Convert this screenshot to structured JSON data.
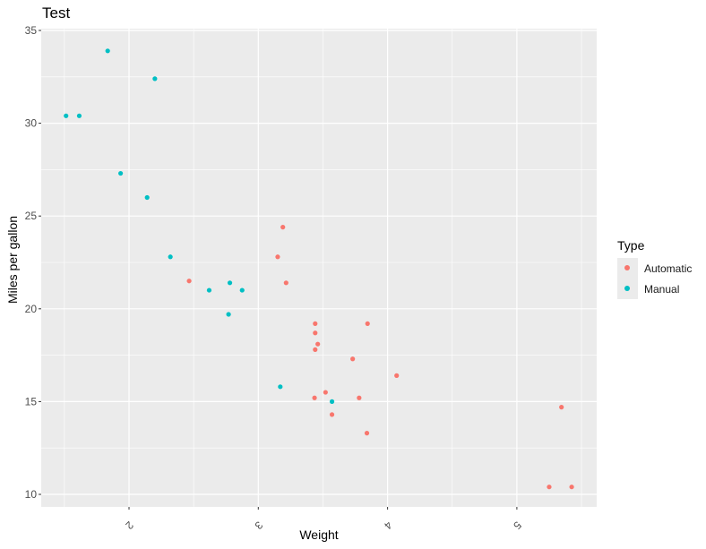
{
  "chart_data": {
    "type": "scatter",
    "title": "Test",
    "xlabel": "Weight",
    "ylabel": "Miles per gallon",
    "xlim": [
      1.3,
      5.6
    ],
    "ylim": [
      9.2,
      35.1
    ],
    "x_ticks": [
      2,
      3,
      4,
      5
    ],
    "x_tick_labels": [
      "2",
      "3",
      "4",
      "5"
    ],
    "x_tick_rotation": 135,
    "y_ticks": [
      10,
      15,
      20,
      25,
      30,
      35
    ],
    "y_tick_labels": [
      "10",
      "15",
      "20",
      "25",
      "30",
      "35"
    ],
    "grid": true,
    "legend_position": "right",
    "legend_title": "Type",
    "series": [
      {
        "name": "Automatic",
        "color": "#F8766D",
        "points": [
          [
            3.215,
            21.4
          ],
          [
            3.44,
            18.7
          ],
          [
            3.46,
            18.1
          ],
          [
            3.57,
            14.3
          ],
          [
            3.19,
            24.4
          ],
          [
            3.15,
            22.8
          ],
          [
            3.44,
            19.2
          ],
          [
            3.44,
            17.8
          ],
          [
            4.07,
            16.4
          ],
          [
            3.73,
            17.3
          ],
          [
            3.78,
            15.2
          ],
          [
            5.25,
            10.4
          ],
          [
            5.424,
            10.4
          ],
          [
            5.345,
            14.7
          ],
          [
            2.465,
            21.5
          ],
          [
            3.52,
            15.5
          ],
          [
            3.435,
            15.2
          ],
          [
            3.84,
            13.3
          ],
          [
            3.845,
            19.2
          ]
        ]
      },
      {
        "name": "Manual",
        "color": "#00BFC4",
        "points": [
          [
            2.62,
            21.0
          ],
          [
            2.875,
            21.0
          ],
          [
            2.32,
            22.8
          ],
          [
            2.2,
            32.4
          ],
          [
            1.615,
            30.4
          ],
          [
            1.835,
            33.9
          ],
          [
            1.935,
            27.3
          ],
          [
            2.14,
            26.0
          ],
          [
            1.513,
            30.4
          ],
          [
            3.17,
            15.8
          ],
          [
            2.77,
            19.7
          ],
          [
            3.57,
            15.0
          ],
          [
            2.78,
            21.4
          ]
        ]
      }
    ]
  },
  "title": "Test",
  "axes": {
    "xlabel": "Weight",
    "ylabel": "Miles per gallon"
  },
  "legend": {
    "title": "Type",
    "items": [
      {
        "label": "Automatic",
        "color": "#F8766D"
      },
      {
        "label": "Manual",
        "color": "#00BFC4"
      }
    ]
  },
  "style": {
    "panel_bg": "#EBEBEB",
    "grid_major": "#FFFFFF",
    "axis_text": "#4D4D4D",
    "tick": "#333333"
  }
}
